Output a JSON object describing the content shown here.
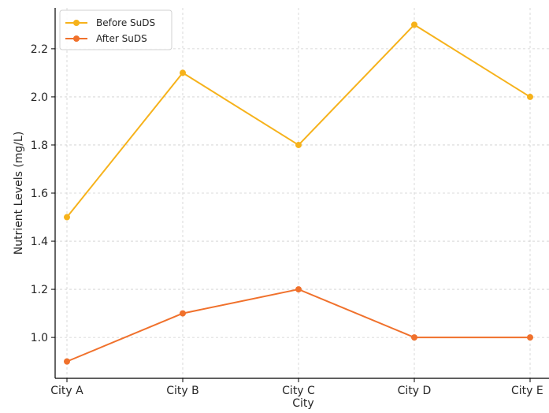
{
  "chart_data": {
    "type": "line",
    "title": "",
    "xlabel": "City",
    "ylabel": "Nutrient Levels (mg/L)",
    "categories": [
      "City A",
      "City B",
      "City C",
      "City D",
      "City E"
    ],
    "ylim": [
      0.83,
      2.37
    ],
    "yticks": [
      1.0,
      1.2,
      1.4,
      1.6,
      1.8,
      2.0,
      2.2
    ],
    "ytick_labels": [
      "1.0",
      "1.2",
      "1.4",
      "1.6",
      "1.8",
      "2.0",
      "2.2"
    ],
    "grid": true,
    "legend_position": "top-left",
    "series": [
      {
        "name": "Before SuDS",
        "color": "#f6b21b",
        "values": [
          1.5,
          2.1,
          1.8,
          2.3,
          2.0
        ]
      },
      {
        "name": "After SuDS",
        "color": "#f0712c",
        "values": [
          0.9,
          1.1,
          1.2,
          1.0,
          1.0
        ]
      }
    ]
  }
}
